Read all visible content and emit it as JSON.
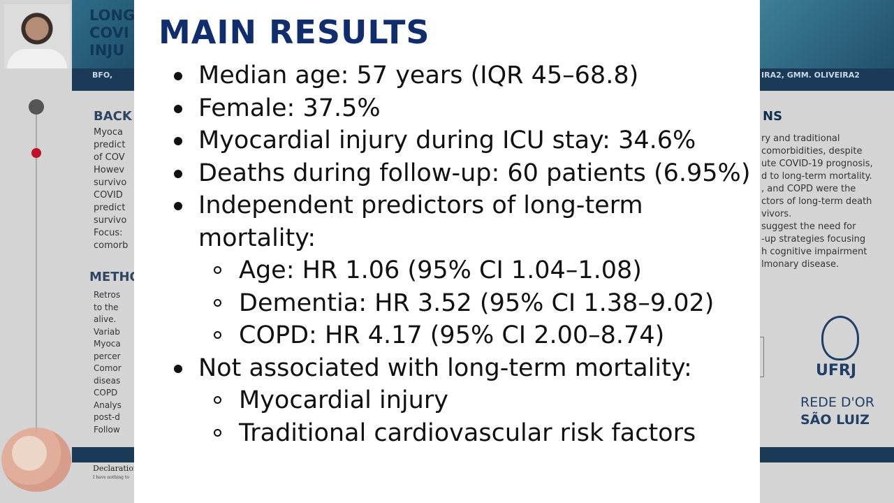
{
  "background": {
    "title_fragment": [
      "LONG",
      "COVI",
      "INJU"
    ],
    "authors_left": "BFO,",
    "authors_right": "IRA2, GMM. OLIVEIRA2",
    "sections": {
      "background": "BACK",
      "methods": "METHO",
      "conclusions": "NS"
    },
    "left_fragments": [
      "Myoca",
      "predict",
      "of COV",
      "Howev",
      "survivo",
      "COVID",
      "predict",
      "survivo",
      "Focus:",
      "comorb"
    ],
    "methods_fragments": [
      "Retros",
      "to the",
      "alive.",
      "Variab",
      "Myoca",
      "percer",
      "Comor",
      "diseas",
      "COPD",
      "Analys",
      "post-d",
      "Follow"
    ],
    "right_fragments": [
      "ry and traditional",
      "comorbidities, despite",
      "ute COVID-19 prognosis,",
      "d to long-term mortality.",
      ", and COPD were the",
      "ctors of long-term death",
      "vivors.",
      "suggest the need for",
      "-up strategies focusing",
      "h cognitive impairment",
      "lmonary disease."
    ],
    "declaration": "Declaration",
    "declaration_small": "I have nothing to",
    "logos": {
      "ufrj": "UFRJ",
      "rede": "REDE D'OR",
      "sao": "SÃO LUIZ"
    }
  },
  "slide": {
    "title": "MAIN RESULTS",
    "items": [
      {
        "text": "Median age: 57 years (IQR 45–68.8)"
      },
      {
        "text": "Female: 37.5%"
      },
      {
        "text": "Myocardial injury during ICU stay: 34.6%"
      },
      {
        "text": "Deaths during follow-up: 60 patients (6.95%)"
      },
      {
        "text": "Independent predictors of long-term mortality:",
        "sub": [
          "Age: HR 1.06 (95% CI 1.04–1.08)",
          "Dementia: HR 3.52 (95% CI 1.38–9.02)",
          "COPD: HR 4.17 (95% CI 2.00–8.74)"
        ]
      },
      {
        "text": "Not associated with long-term mortality:",
        "sub": [
          "Myocardial injury",
          "Traditional cardiovascular risk factors"
        ]
      }
    ]
  },
  "colors": {
    "title": "#102d6e",
    "text": "#111111",
    "band": "#1b3a57"
  }
}
